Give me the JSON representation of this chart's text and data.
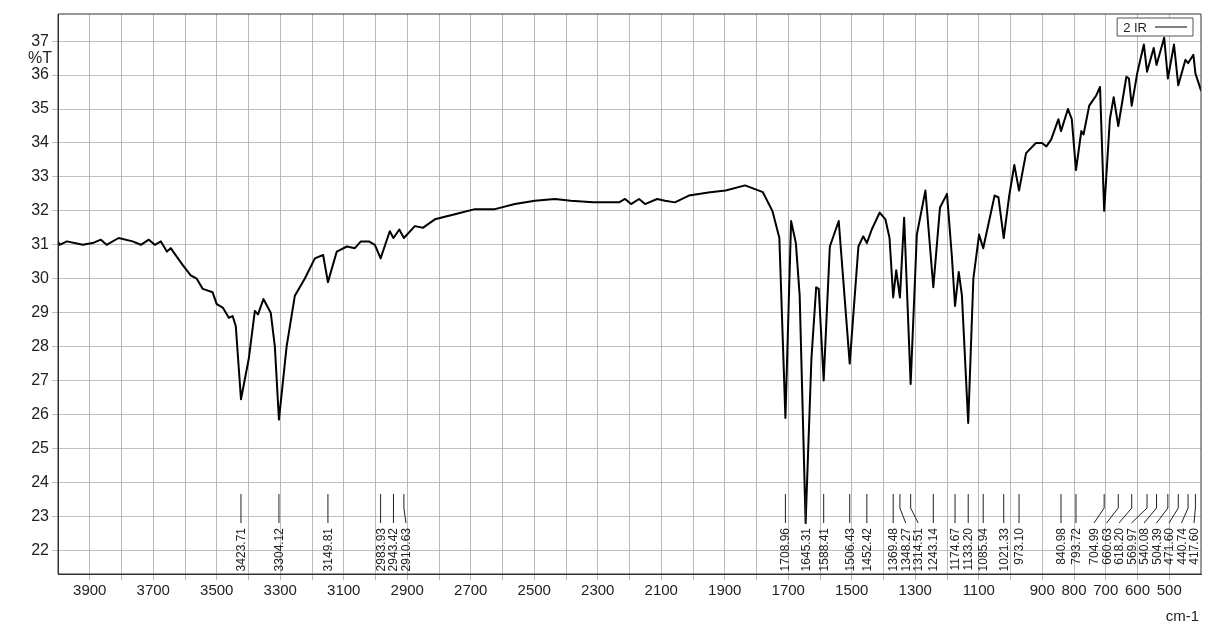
{
  "chart_data": {
    "type": "line",
    "ylabel": "%T",
    "xlabel": "cm-1",
    "xlim": [
      4000,
      400
    ],
    "ylim": [
      21.3,
      37.8
    ],
    "xticks": [
      {
        "value": 3900,
        "label": "3900"
      },
      {
        "value": 3800,
        "label": null
      },
      {
        "value": 3700,
        "label": "3700"
      },
      {
        "value": 3600,
        "label": null
      },
      {
        "value": 3500,
        "label": "3500"
      },
      {
        "value": 3400,
        "label": null
      },
      {
        "value": 3300,
        "label": "3300"
      },
      {
        "value": 3200,
        "label": null
      },
      {
        "value": 3100,
        "label": "3100"
      },
      {
        "value": 3000,
        "label": null
      },
      {
        "value": 2900,
        "label": "2900"
      },
      {
        "value": 2800,
        "label": null
      },
      {
        "value": 2700,
        "label": "2700"
      },
      {
        "value": 2600,
        "label": null
      },
      {
        "value": 2500,
        "label": "2500"
      },
      {
        "value": 2400,
        "label": null
      },
      {
        "value": 2300,
        "label": "2300"
      },
      {
        "value": 2200,
        "label": null
      },
      {
        "value": 2100,
        "label": "2100"
      },
      {
        "value": 2000,
        "label": null
      },
      {
        "value": 1900,
        "label": "1900"
      },
      {
        "value": 1800,
        "label": null
      },
      {
        "value": 1700,
        "label": "1700"
      },
      {
        "value": 1600,
        "label": null
      },
      {
        "value": 1500,
        "label": "1500"
      },
      {
        "value": 1400,
        "label": null
      },
      {
        "value": 1300,
        "label": "1300"
      },
      {
        "value": 1200,
        "label": null
      },
      {
        "value": 1100,
        "label": "1100"
      },
      {
        "value": 1000,
        "label": null
      },
      {
        "value": 900,
        "label": "900"
      },
      800,
      700,
      600,
      500
    ],
    "yticks": [
      22,
      23,
      24,
      25,
      26,
      27,
      28,
      29,
      30,
      31,
      32,
      33,
      34,
      35,
      36,
      37
    ],
    "grid": true,
    "legend": "top right",
    "x": [
      4000,
      3995,
      3972,
      3922,
      3891,
      3865,
      3847,
      3809,
      3765,
      3739,
      3714,
      3695,
      3676,
      3657,
      3645,
      3607,
      3582,
      3563,
      3544,
      3513,
      3500,
      3481,
      3462,
      3450,
      3440,
      3423.71,
      3399,
      3380,
      3370,
      3353,
      3330,
      3317,
      3304.12,
      3280,
      3254,
      3223,
      3191,
      3165,
      3149.81,
      3122,
      3090,
      3065,
      3046,
      3021,
      3002,
      2983.93,
      2955,
      2943.42,
      2925,
      2910.63,
      2876,
      2851,
      2813,
      2750,
      2687,
      2624,
      2561,
      2498,
      2435,
      2385,
      2315,
      2233,
      2214,
      2195,
      2170,
      2151,
      2113,
      2088,
      2057,
      2013,
      1946,
      1897,
      1836,
      1780,
      1750,
      1728,
      1708.96,
      1691,
      1676,
      1664,
      1645.31,
      1627,
      1612,
      1604,
      1588.41,
      1569,
      1541,
      1506.43,
      1479,
      1464,
      1452.42,
      1437,
      1412,
      1394,
      1381,
      1369.48,
      1360,
      1348.27,
      1335,
      1314.51,
      1295,
      1268,
      1243.14,
      1222,
      1200,
      1185,
      1174.67,
      1163,
      1153,
      1133.2,
      1117,
      1099,
      1085.94,
      1050,
      1038,
      1021.33,
      1004,
      988,
      973.1,
      951,
      920,
      901,
      887,
      872,
      849,
      840.98,
      819,
      807,
      793.72,
      777,
      770,
      752,
      730,
      718,
      704.99,
      687,
      675,
      660.63,
      635,
      627,
      618.2,
      601,
      580,
      569.97,
      549,
      540.08,
      516,
      504.39,
      485,
      471.6,
      449,
      440.74,
      424,
      417.6,
      400
    ],
    "series": [
      {
        "name": "2 IR",
        "color": "#000000",
        "values": [
          31.1,
          31.0,
          31.1,
          31.0,
          31.05,
          31.15,
          31.0,
          31.2,
          31.1,
          31.0,
          31.15,
          31.0,
          31.1,
          30.8,
          30.9,
          30.4,
          30.1,
          30.0,
          29.7,
          29.6,
          29.25,
          29.15,
          28.85,
          28.9,
          28.6,
          26.45,
          27.65,
          29.05,
          28.95,
          29.4,
          29.0,
          28.0,
          25.85,
          28.0,
          29.5,
          30.0,
          30.6,
          30.7,
          29.9,
          30.8,
          30.95,
          30.9,
          31.1,
          31.1,
          31.0,
          30.6,
          31.4,
          31.2,
          31.45,
          31.2,
          31.55,
          31.5,
          31.75,
          31.9,
          32.05,
          32.05,
          32.2,
          32.3,
          32.35,
          32.3,
          32.25,
          32.25,
          32.35,
          32.2,
          32.35,
          32.2,
          32.35,
          32.3,
          32.25,
          32.45,
          32.55,
          32.6,
          32.75,
          32.55,
          32.0,
          31.2,
          25.9,
          31.7,
          31.05,
          29.5,
          22.8,
          27.65,
          29.75,
          29.7,
          27.0,
          30.95,
          31.7,
          27.5,
          30.95,
          31.25,
          31.05,
          31.45,
          31.95,
          31.75,
          31.2,
          29.45,
          30.25,
          29.45,
          31.8,
          26.9,
          31.3,
          32.6,
          29.75,
          32.1,
          32.5,
          30.7,
          29.2,
          30.2,
          29.5,
          25.75,
          30.0,
          31.3,
          30.9,
          32.45,
          32.4,
          31.2,
          32.45,
          33.35,
          32.6,
          33.7,
          34.0,
          34.0,
          33.9,
          34.1,
          34.7,
          34.35,
          35.0,
          34.7,
          33.2,
          34.35,
          34.25,
          35.1,
          35.4,
          35.65,
          32.0,
          34.7,
          35.35,
          34.5,
          35.95,
          35.9,
          35.1,
          36.05,
          36.9,
          36.1,
          36.8,
          36.3,
          37.1,
          35.9,
          36.9,
          35.7,
          36.45,
          36.35,
          36.6,
          36.05,
          35.55
        ]
      }
    ],
    "annotations": [
      {
        "text": "3423.71",
        "x": 3423.71
      },
      {
        "text": "3304.12",
        "x": 3304.12
      },
      {
        "text": "3149.81",
        "x": 3149.81
      },
      {
        "text": "2983.93",
        "x": 2983.93
      },
      {
        "text": "2943.42",
        "x": 2943.42
      },
      {
        "text": "2910.63",
        "x": 2910.63
      },
      {
        "text": "1708.96",
        "x": 1708.96
      },
      {
        "text": "1645.31",
        "x": 1645.31
      },
      {
        "text": "1588.41",
        "x": 1588.41
      },
      {
        "text": "1506.43",
        "x": 1506.43
      },
      {
        "text": "1452.42",
        "x": 1452.42
      },
      {
        "text": "1369.48",
        "x": 1369.48
      },
      {
        "text": "1348.27",
        "x": 1348.27
      },
      {
        "text": "1314.51",
        "x": 1314.51
      },
      {
        "text": "1243.14",
        "x": 1243.14
      },
      {
        "text": "1174.67",
        "x": 1174.67
      },
      {
        "text": "1133.20",
        "x": 1133.2
      },
      {
        "text": "1085.94",
        "x": 1085.94
      },
      {
        "text": "1021.33",
        "x": 1021.33
      },
      {
        "text": "973.10",
        "x": 973.1
      },
      {
        "text": "840.98",
        "x": 840.98
      },
      {
        "text": "793.72",
        "x": 793.72
      },
      {
        "text": "704.99",
        "x": 704.99
      },
      {
        "text": "660.63",
        "x": 660.63
      },
      {
        "text": "618.20",
        "x": 618.2
      },
      {
        "text": "569.97",
        "x": 569.97
      },
      {
        "text": "540.08",
        "x": 540.08
      },
      {
        "text": "504.39",
        "x": 504.39
      },
      {
        "text": "471.60",
        "x": 471.6
      },
      {
        "text": "440.74",
        "x": 440.74
      },
      {
        "text": "417.60",
        "x": 417.6
      }
    ]
  }
}
